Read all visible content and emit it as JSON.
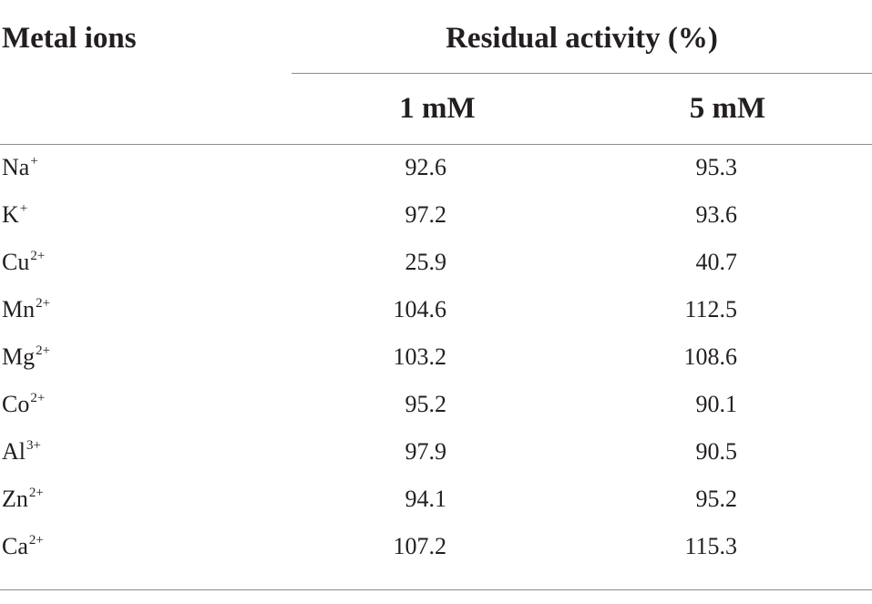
{
  "table": {
    "header": {
      "metal_ions": "Metal ions",
      "group": "Residual activity (%)",
      "col1": "1 mM",
      "col2": "5 mM"
    },
    "rows": [
      {
        "ion": "Na",
        "charge": "+",
        "v1": "92.6",
        "v2": "95.3"
      },
      {
        "ion": "K",
        "charge": "+",
        "v1": "97.2",
        "v2": "93.6"
      },
      {
        "ion": "Cu",
        "charge": "2+",
        "v1": "25.9",
        "v2": "40.7"
      },
      {
        "ion": "Mn",
        "charge": "2+",
        "v1": "104.6",
        "v2": "112.5"
      },
      {
        "ion": "Mg",
        "charge": "2+",
        "v1": "103.2",
        "v2": "108.6"
      },
      {
        "ion": "Co",
        "charge": "2+",
        "v1": "95.2",
        "v2": "90.1"
      },
      {
        "ion": "Al",
        "charge": "3+",
        "v1": "97.9",
        "v2": "90.5"
      },
      {
        "ion": "Zn",
        "charge": "2+",
        "v1": "94.1",
        "v2": "95.2"
      },
      {
        "ion": "Ca",
        "charge": "2+",
        "v1": "107.2",
        "v2": "115.3"
      }
    ]
  }
}
